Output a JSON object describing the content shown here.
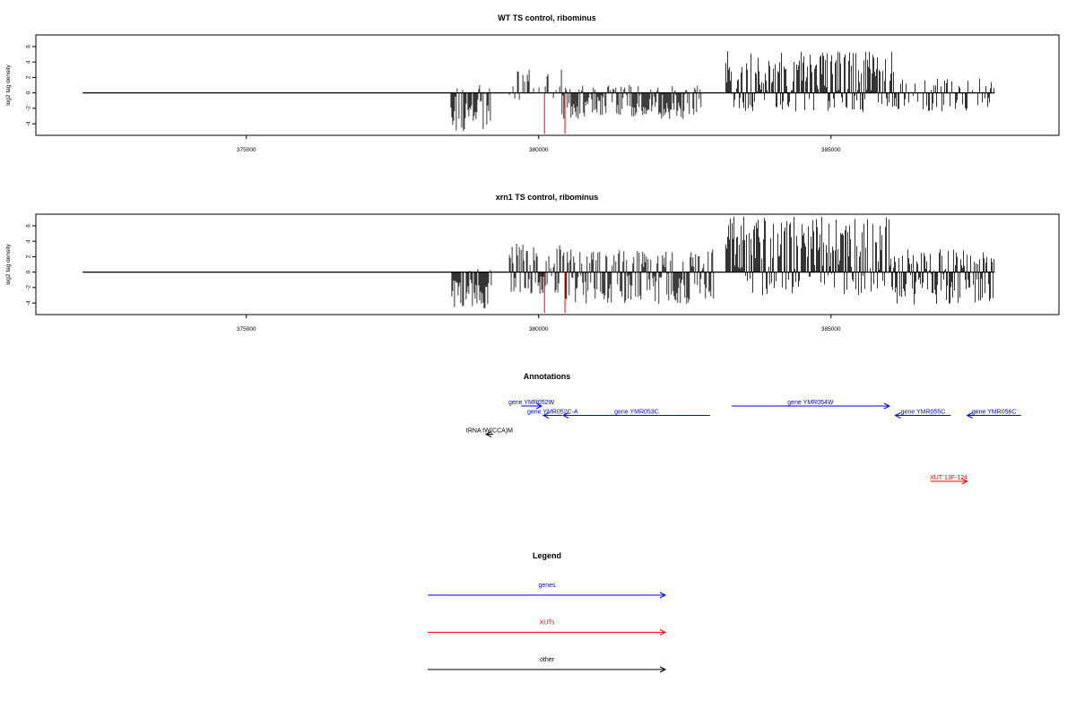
{
  "chart_data": [
    {
      "type": "bar",
      "title": "WT TS control, ribominus",
      "xlabel": "",
      "ylabel": "log2 tag density",
      "xlim": [
        371400,
        388900
      ],
      "ylim": [
        -5.5,
        7.5
      ],
      "xticks": [
        375000,
        380000,
        385000
      ],
      "xtick_labels": [
        "375000",
        "380000",
        "385000"
      ],
      "yticks": [
        6,
        4,
        2,
        0,
        -2,
        -4
      ],
      "ytick_labels": [
        "6",
        "4",
        "2",
        "0",
        "-2",
        "-4"
      ],
      "baseline": {
        "from": 372200,
        "to": 387800,
        "value": 0
      },
      "regions": [
        {
          "from": 378500,
          "to": 379200,
          "min": -5.2,
          "max": 1.0
        },
        {
          "from": 379500,
          "to": 380400,
          "min": -1.0,
          "max": 3.0
        },
        {
          "from": 380400,
          "to": 382800,
          "min": -3.4,
          "max": 1.0
        },
        {
          "from": 383200,
          "to": 386100,
          "min": -2.5,
          "max": 5.4
        },
        {
          "from": 386100,
          "to": 387800,
          "min": -2.4,
          "max": 1.9
        }
      ],
      "highlights": [
        {
          "x": 380100,
          "value": -5.3
        },
        {
          "x": 380450,
          "value": -5.3
        }
      ],
      "grid": false
    },
    {
      "type": "bar",
      "title": "xrn1 TS control, ribominus",
      "xlabel": "",
      "ylabel": "log2 tag density",
      "xlim": [
        371400,
        388900
      ],
      "ylim": [
        -5.5,
        7.5
      ],
      "xticks": [
        375000,
        380000,
        385000
      ],
      "xtick_labels": [
        "375000",
        "380000",
        "385000"
      ],
      "yticks": [
        6,
        4,
        2,
        0,
        -2,
        -4
      ],
      "ytick_labels": [
        "6",
        "4",
        "2",
        "0",
        "-2",
        "-4"
      ],
      "baseline": {
        "from": 372200,
        "to": 387800,
        "value": 0
      },
      "regions": [
        {
          "from": 378500,
          "to": 379200,
          "min": -4.8,
          "max": 0.5
        },
        {
          "from": 379500,
          "to": 380400,
          "min": -3.0,
          "max": 3.8
        },
        {
          "from": 380400,
          "to": 383000,
          "min": -4.2,
          "max": 3.0
        },
        {
          "from": 383200,
          "to": 386100,
          "min": -3.0,
          "max": 7.2
        },
        {
          "from": 386100,
          "to": 387800,
          "min": -4.2,
          "max": 3.0
        }
      ],
      "highlights": [
        {
          "x": 380100,
          "value": -5.3
        },
        {
          "x": 380450,
          "value": -5.3
        }
      ],
      "grid": false
    }
  ],
  "annotations": {
    "title": "Annotations",
    "features": [
      {
        "label": "gene YMR052W",
        "kind": "gene",
        "strand": "+",
        "start": 379700,
        "end": 380050,
        "row": 0
      },
      {
        "label": "gene YMR052C-A",
        "kind": "gene",
        "strand": "-",
        "start": 380080,
        "end": 380400,
        "row": 1
      },
      {
        "label": "gene YMR053C",
        "kind": "gene",
        "strand": "-",
        "start": 380420,
        "end": 382930,
        "row": 1
      },
      {
        "label": "gene YMR054W",
        "kind": "gene",
        "strand": "+",
        "start": 383300,
        "end": 386000,
        "row": 0
      },
      {
        "label": "gene YMR055C",
        "kind": "gene",
        "strand": "-",
        "start": 386100,
        "end": 387050,
        "row": 1
      },
      {
        "label": "gene YMR056C",
        "kind": "gene",
        "strand": "-",
        "start": 387330,
        "end": 388250,
        "row": 1
      },
      {
        "label": "tRNA tW(CCA)M",
        "kind": "other",
        "strand": "-",
        "start": 379100,
        "end": 379220,
        "row": 3
      },
      {
        "label": "XUT 13F-124",
        "kind": "xut",
        "strand": "+",
        "start": 386700,
        "end": 387330,
        "row": 8
      }
    ]
  },
  "legend": {
    "title": "Legend",
    "items": [
      {
        "label": "genes",
        "color": "#0000ff"
      },
      {
        "label": "XUTs",
        "color": "#ff0000"
      },
      {
        "label": "other",
        "color": "#000000"
      }
    ]
  },
  "colors": {
    "gene": "#0000ff",
    "xut": "#ff0000",
    "other": "#000000",
    "highlight": "#ff0000"
  }
}
